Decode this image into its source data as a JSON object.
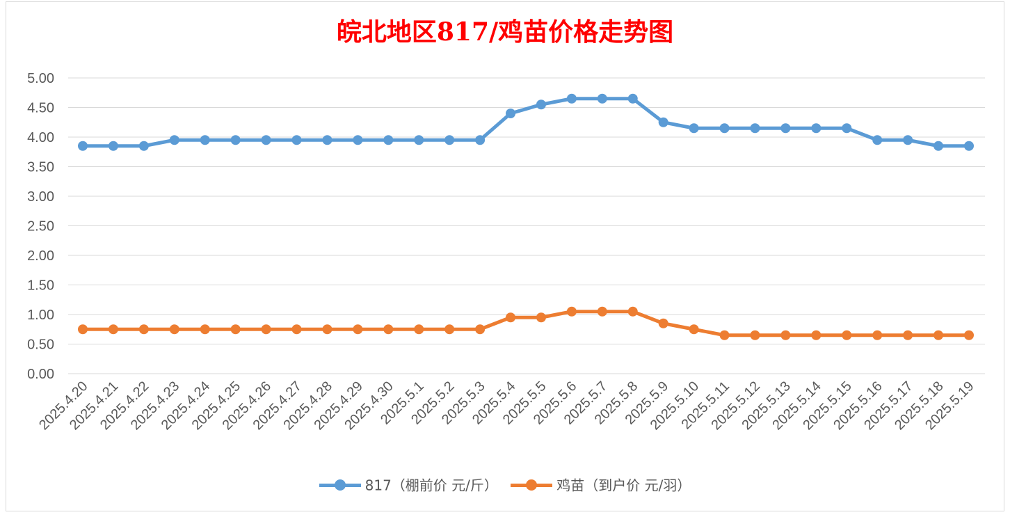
{
  "chart_data": {
    "type": "line",
    "title": "皖北地区817/鸡苗价格走势图",
    "categories": [
      "2025.4.20",
      "2025.4.21",
      "2025.4.22",
      "2025.4.23",
      "2025.4.24",
      "2025.4.25",
      "2025.4.26",
      "2025.4.27",
      "2025.4.28",
      "2025.4.29",
      "2025.4.30",
      "2025.5.1",
      "2025.5.2",
      "2025.5.3",
      "2025.5.4",
      "2025.5.5",
      "2025.5.6",
      "2025.5.7",
      "2025.5.8",
      "2025.5.9",
      "2025.5.10",
      "2025.5.11",
      "2025.5.12",
      "2025.5.13",
      "2025.5.14",
      "2025.5.15",
      "2025.5.16",
      "2025.5.17",
      "2025.5.18",
      "2025.5.19"
    ],
    "yticks": [
      "0.00",
      "0.50",
      "1.00",
      "1.50",
      "2.00",
      "2.50",
      "3.00",
      "3.50",
      "4.00",
      "4.50",
      "5.00"
    ],
    "ylim": [
      0,
      5
    ],
    "grid": true,
    "legend_position": "bottom",
    "series": [
      {
        "name": "817（棚前价 元/斤）",
        "color": "#5b9bd5",
        "values": [
          3.85,
          3.85,
          3.85,
          3.95,
          3.95,
          3.95,
          3.95,
          3.95,
          3.95,
          3.95,
          3.95,
          3.95,
          3.95,
          3.95,
          4.4,
          4.55,
          4.65,
          4.65,
          4.65,
          4.25,
          4.15,
          4.15,
          4.15,
          4.15,
          4.15,
          4.15,
          3.95,
          3.95,
          3.85,
          3.85
        ]
      },
      {
        "name": "鸡苗（到户价 元/羽）",
        "color": "#ed7d31",
        "values": [
          0.75,
          0.75,
          0.75,
          0.75,
          0.75,
          0.75,
          0.75,
          0.75,
          0.75,
          0.75,
          0.75,
          0.75,
          0.75,
          0.75,
          0.95,
          0.95,
          1.05,
          1.05,
          1.05,
          0.85,
          0.75,
          0.65,
          0.65,
          0.65,
          0.65,
          0.65,
          0.65,
          0.65,
          0.65,
          0.65
        ]
      }
    ]
  }
}
